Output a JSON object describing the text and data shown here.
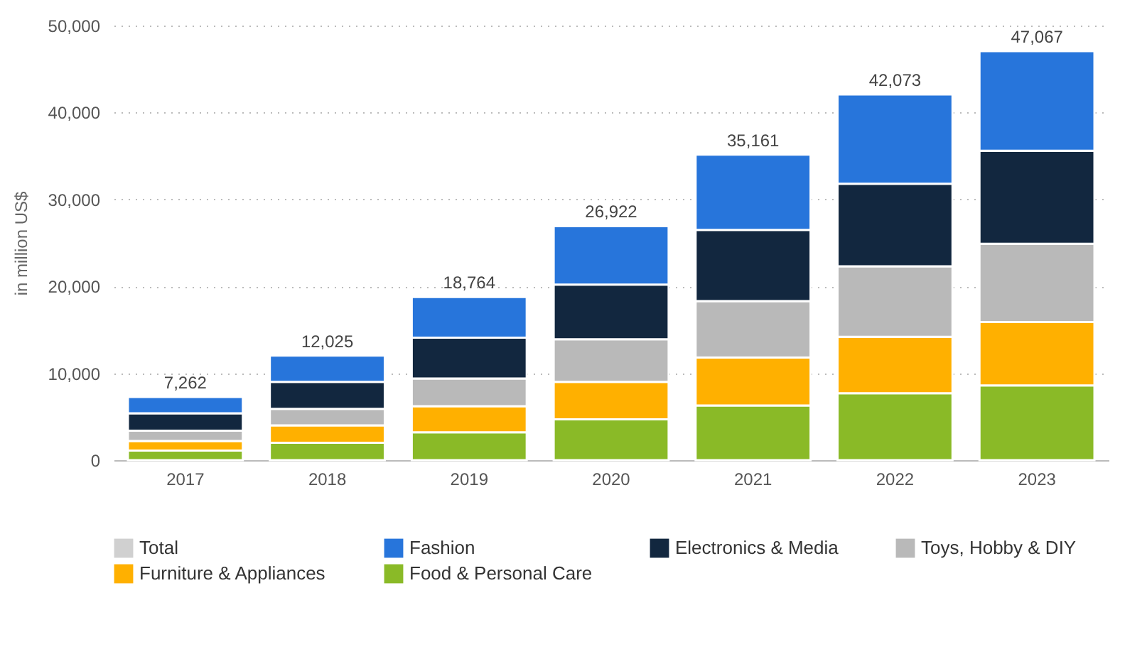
{
  "chart_data": {
    "type": "bar",
    "stacked": true,
    "ylabel": "in million US$",
    "categories": [
      "2017",
      "2018",
      "2019",
      "2020",
      "2021",
      "2022",
      "2023"
    ],
    "series": [
      {
        "name": "Food & Personal Care",
        "color": "#8aba27",
        "values": [
          1100,
          2000,
          3200,
          4700,
          6300,
          7700,
          8600
        ]
      },
      {
        "name": "Furniture & Appliances",
        "color": "#ffb000",
        "values": [
          1100,
          2000,
          3000,
          4300,
          5500,
          6500,
          7300
        ]
      },
      {
        "name": "Toys, Hobby & DIY",
        "color": "#b9b9b9",
        "values": [
          1200,
          1900,
          3200,
          4900,
          6500,
          8100,
          9000
        ]
      },
      {
        "name": "Electronics & Media",
        "color": "#12273f",
        "values": [
          2000,
          3100,
          4700,
          6300,
          8200,
          9500,
          10700
        ]
      },
      {
        "name": "Fashion",
        "color": "#2775db",
        "values": [
          1862,
          3025,
          4664,
          6722,
          8661,
          10273,
          11467
        ]
      },
      {
        "name": "Total",
        "color": "#d0d0d0",
        "values": [
          null,
          null,
          null,
          null,
          null,
          null,
          null
        ]
      }
    ],
    "totals": [
      "7,262",
      "12,025",
      "18,764",
      "26,922",
      "35,161",
      "42,073",
      "47,067"
    ],
    "ylim": [
      0,
      50000
    ],
    "yticks": [
      0,
      {
        "value": 10000,
        "label": "10,000"
      },
      {
        "value": 20000,
        "label": "20,000"
      },
      {
        "value": 30000,
        "label": "30,000"
      },
      {
        "value": 40000,
        "label": "40,000"
      },
      {
        "value": 50000,
        "label": "50,000"
      }
    ],
    "grid": "y",
    "legend": "bottom"
  }
}
